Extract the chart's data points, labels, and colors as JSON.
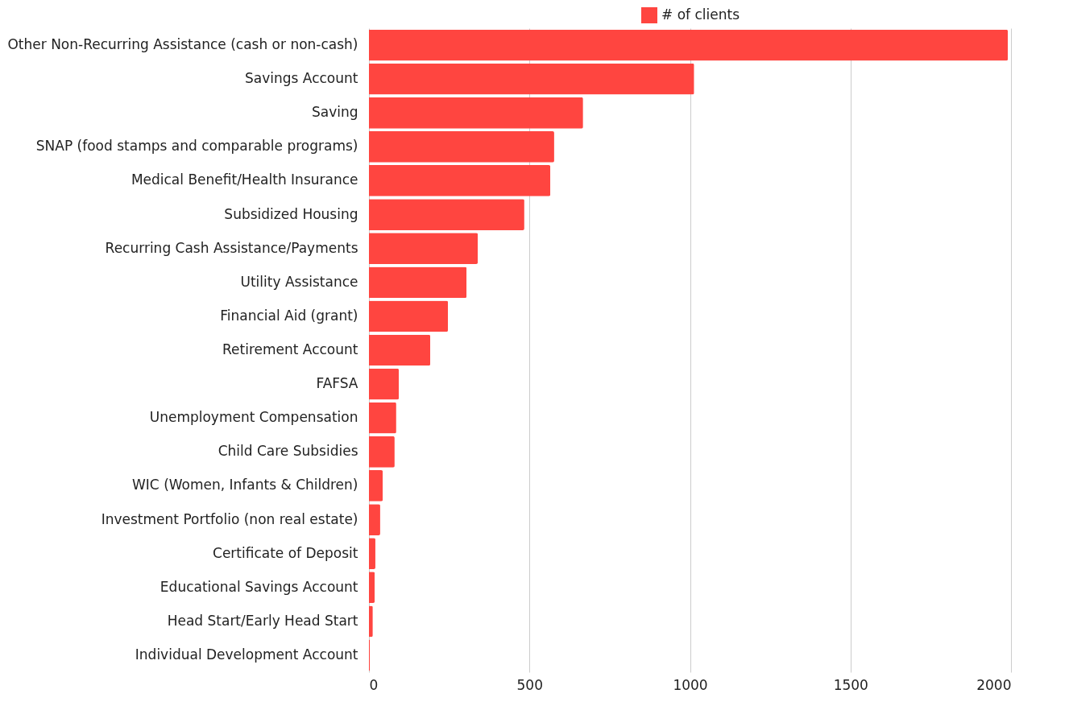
{
  "chart_data": {
    "type": "bar",
    "orientation": "horizontal",
    "categories": [
      "Other Non-Recurring Assistance (cash or non-cash)",
      "Savings Account",
      "Saving",
      "SNAP (food stamps and comparable programs)",
      "Medical Benefit/Health Insurance",
      "Subsidized Housing",
      "Recurring Cash Assistance/Payments",
      "Utility Assistance",
      "Financial Aid (grant)",
      "Retirement Account",
      "FAFSA",
      "Unemployment Compensation",
      "Child Care Subsidies",
      "WIC (Women, Infants & Children)",
      "Investment Portfolio (non real estate)",
      "Certificate of Deposit",
      "Educational Savings Account",
      "Head Start/Early Head Start",
      "Individual Development Account"
    ],
    "series": [
      {
        "name": "# of clients",
        "color": "#ff4540",
        "values": [
          1990,
          1013,
          667,
          577,
          565,
          484,
          339,
          304,
          246,
          191,
          93,
          85,
          80,
          43,
          35,
          20,
          18,
          12,
          3
        ]
      }
    ],
    "xlim": [
      0,
      2000
    ],
    "xticks": [
      0,
      500,
      1000,
      1500,
      2000
    ],
    "grid": "x",
    "legend": "top"
  }
}
